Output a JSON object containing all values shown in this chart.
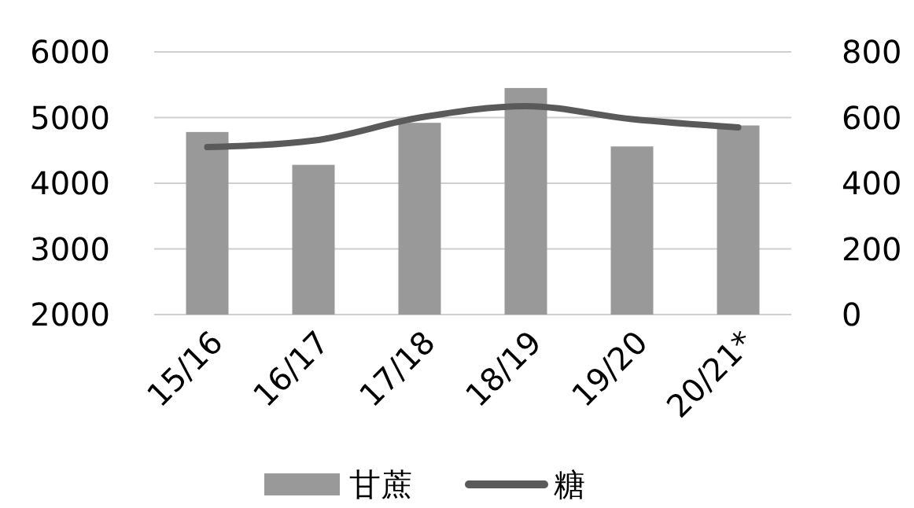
{
  "chart_data": {
    "type": "bar",
    "categories": [
      "15/16",
      "16/17",
      "17/18",
      "18/19",
      "19/20",
      "20/21*"
    ],
    "series": [
      {
        "name": "甘蔗",
        "color": "#999999",
        "values": [
          4780,
          4280,
          4920,
          5450,
          4560,
          4880
        ]
      },
      {
        "name": "糖",
        "type": "line",
        "axis": "y2",
        "color": "#5a5a5a",
        "values": [
          510,
          530,
          600,
          635,
          595,
          570
        ]
      }
    ],
    "ylim": [
      2000,
      6000
    ],
    "yticks": [
      2000,
      3000,
      4000,
      5000,
      6000
    ],
    "y2lim": [
      0,
      800
    ],
    "y2ticks": [
      0,
      200,
      400,
      600,
      800
    ],
    "grid": "y",
    "legend": "bottom",
    "marker": "none",
    "line_style": "solid"
  }
}
